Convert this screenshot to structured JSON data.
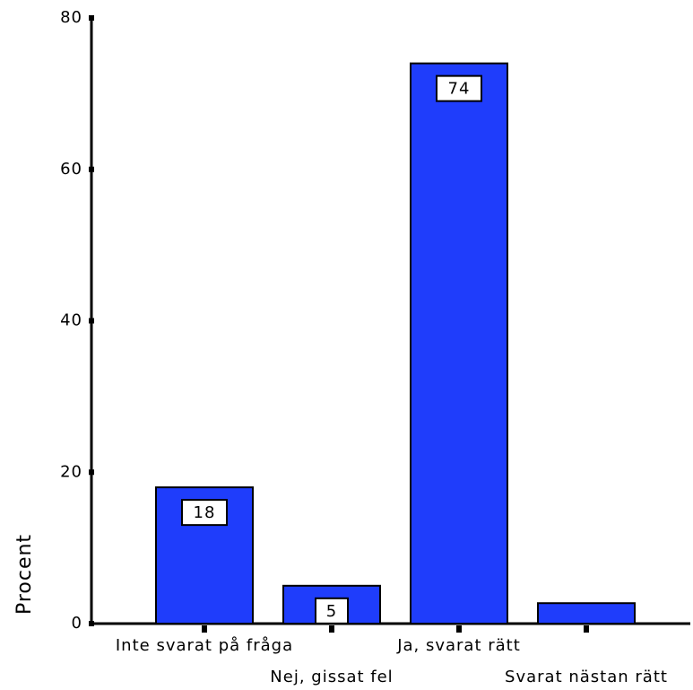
{
  "chart_data": {
    "type": "bar",
    "y_label": "Procent",
    "categories": [
      "Inte svarat på fråga",
      "Nej, gissat fel",
      "Ja, svarat rätt",
      "Svarat nästan rätt"
    ],
    "values": [
      18,
      5,
      74,
      2.7
    ],
    "value_labels": [
      "18",
      "5",
      "74",
      null
    ],
    "color": "#1f3dfb",
    "ylim": [
      0,
      80
    ],
    "yticks": [
      0,
      20,
      40,
      60,
      80
    ]
  }
}
